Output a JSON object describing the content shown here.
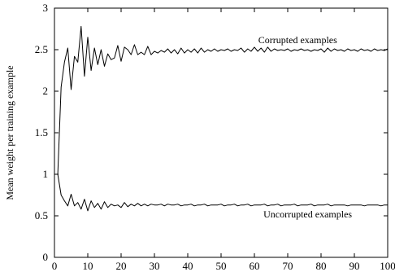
{
  "chart_data": {
    "type": "line",
    "title": "",
    "xlabel": "",
    "ylabel": "Mean weight per training example",
    "xlim": [
      0,
      100
    ],
    "ylim": [
      0,
      3
    ],
    "grid": false,
    "x_ticks": [
      0,
      10,
      20,
      30,
      40,
      50,
      60,
      70,
      80,
      90,
      100
    ],
    "y_ticks": [
      0,
      0.5,
      1,
      1.5,
      2,
      2.5,
      3
    ],
    "x_tick_labels": [
      "0",
      "10",
      "20",
      "30",
      "40",
      "50",
      "60",
      "70",
      "80",
      "90",
      "100"
    ],
    "y_tick_labels": [
      "0",
      "0.5",
      "1",
      "1.5",
      "2",
      "2.5",
      "3"
    ],
    "series": [
      {
        "key": "corrupted",
        "x": [
          1,
          2,
          3,
          4,
          5,
          6,
          7,
          8,
          9,
          10,
          11,
          12,
          13,
          14,
          15,
          16,
          17,
          18,
          19,
          20,
          21,
          22,
          23,
          24,
          25,
          26,
          27,
          28,
          29,
          30,
          31,
          32,
          33,
          34,
          35,
          36,
          37,
          38,
          39,
          40,
          41,
          42,
          43,
          44,
          45,
          46,
          47,
          48,
          49,
          50,
          51,
          52,
          53,
          54,
          55,
          56,
          57,
          58,
          59,
          60,
          61,
          62,
          63,
          64,
          65,
          66,
          67,
          68,
          69,
          70,
          71,
          72,
          73,
          74,
          75,
          76,
          77,
          78,
          79,
          80,
          81,
          82,
          83,
          84,
          85,
          86,
          87,
          88,
          89,
          90,
          91,
          92,
          93,
          94,
          95,
          96,
          97,
          98,
          99,
          100
        ],
        "values": [
          1.0,
          2.05,
          2.35,
          2.52,
          2.02,
          2.42,
          2.35,
          2.78,
          2.18,
          2.65,
          2.25,
          2.52,
          2.32,
          2.5,
          2.3,
          2.45,
          2.38,
          2.4,
          2.55,
          2.36,
          2.53,
          2.5,
          2.44,
          2.56,
          2.44,
          2.47,
          2.44,
          2.54,
          2.44,
          2.48,
          2.46,
          2.49,
          2.47,
          2.51,
          2.46,
          2.5,
          2.45,
          2.52,
          2.46,
          2.5,
          2.47,
          2.51,
          2.46,
          2.52,
          2.47,
          2.5,
          2.48,
          2.51,
          2.48,
          2.5,
          2.49,
          2.51,
          2.48,
          2.5,
          2.49,
          2.52,
          2.47,
          2.51,
          2.48,
          2.53,
          2.48,
          2.52,
          2.47,
          2.53,
          2.48,
          2.51,
          2.49,
          2.5,
          2.49,
          2.51,
          2.48,
          2.5,
          2.49,
          2.51,
          2.49,
          2.5,
          2.48,
          2.5,
          2.49,
          2.51,
          2.47,
          2.52,
          2.48,
          2.51,
          2.49,
          2.5,
          2.48,
          2.51,
          2.49,
          2.5,
          2.48,
          2.51,
          2.49,
          2.5,
          2.48,
          2.51,
          2.49,
          2.5,
          2.49,
          2.51
        ]
      },
      {
        "key": "uncorrupted",
        "x": [
          1,
          2,
          3,
          4,
          5,
          6,
          7,
          8,
          9,
          10,
          11,
          12,
          13,
          14,
          15,
          16,
          17,
          18,
          19,
          20,
          21,
          22,
          23,
          24,
          25,
          26,
          27,
          28,
          29,
          30,
          31,
          32,
          33,
          34,
          35,
          36,
          37,
          38,
          39,
          40,
          41,
          42,
          43,
          44,
          45,
          46,
          47,
          48,
          49,
          50,
          51,
          52,
          53,
          54,
          55,
          56,
          57,
          58,
          59,
          60,
          61,
          62,
          63,
          64,
          65,
          66,
          67,
          68,
          69,
          70,
          71,
          72,
          73,
          74,
          75,
          76,
          77,
          78,
          79,
          80,
          81,
          82,
          83,
          84,
          85,
          86,
          87,
          88,
          89,
          90,
          91,
          92,
          93,
          94,
          95,
          96,
          97,
          98,
          99,
          100
        ],
        "values": [
          1.0,
          0.75,
          0.68,
          0.62,
          0.76,
          0.62,
          0.66,
          0.58,
          0.7,
          0.56,
          0.68,
          0.6,
          0.65,
          0.58,
          0.67,
          0.6,
          0.64,
          0.62,
          0.63,
          0.6,
          0.66,
          0.61,
          0.64,
          0.62,
          0.65,
          0.62,
          0.64,
          0.62,
          0.64,
          0.63,
          0.63,
          0.64,
          0.62,
          0.64,
          0.63,
          0.63,
          0.64,
          0.62,
          0.63,
          0.63,
          0.64,
          0.62,
          0.63,
          0.63,
          0.64,
          0.62,
          0.63,
          0.63,
          0.63,
          0.64,
          0.62,
          0.63,
          0.63,
          0.64,
          0.62,
          0.63,
          0.63,
          0.64,
          0.62,
          0.63,
          0.63,
          0.63,
          0.64,
          0.62,
          0.63,
          0.63,
          0.64,
          0.62,
          0.63,
          0.63,
          0.63,
          0.64,
          0.62,
          0.63,
          0.63,
          0.63,
          0.64,
          0.62,
          0.63,
          0.63,
          0.63,
          0.64,
          0.62,
          0.63,
          0.63,
          0.63,
          0.63,
          0.62,
          0.63,
          0.63,
          0.63,
          0.63,
          0.62,
          0.63,
          0.63,
          0.63,
          0.63,
          0.62,
          0.63,
          0.63
        ]
      }
    ],
    "annotations": [
      {
        "key": "corrupted",
        "text": "Corrupted examples",
        "x": 73,
        "y": 2.58
      },
      {
        "key": "uncorrupted",
        "text": "Uncorrupted examples",
        "x": 76,
        "y": 0.48
      }
    ]
  }
}
